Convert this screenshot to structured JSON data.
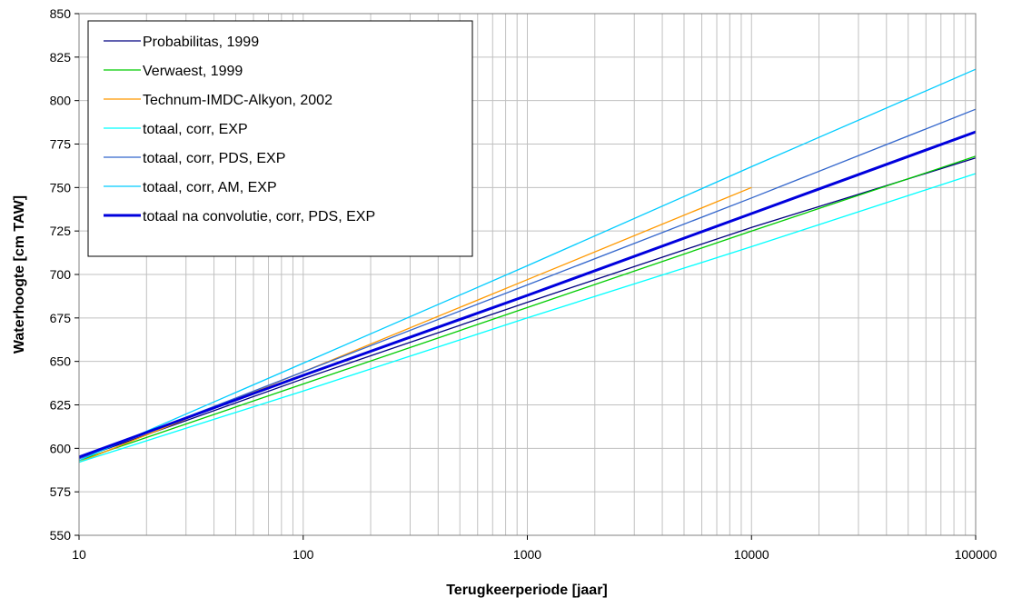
{
  "chart_data": {
    "type": "line",
    "title": "",
    "xlabel": "Terugkeerperiode [jaar]",
    "ylabel": "Waterhoogte [cm TAW]",
    "x_scale": "log",
    "xlim": [
      10,
      100000
    ],
    "ylim": [
      550,
      850
    ],
    "x_ticks": [
      10,
      100,
      1000,
      10000,
      100000
    ],
    "x_tick_labels": [
      "10",
      "100",
      "1000",
      "10000",
      "100000"
    ],
    "y_ticks": [
      550,
      575,
      600,
      625,
      650,
      675,
      700,
      725,
      750,
      775,
      800,
      825,
      850
    ],
    "y_tick_labels": [
      "550",
      "575",
      "600",
      "625",
      "650",
      "675",
      "700",
      "725",
      "750",
      "775",
      "800",
      "825",
      "850"
    ],
    "grid": true,
    "legend_position": "top-left",
    "series": [
      {
        "name": "Probabilitas, 1999",
        "color": "#000080",
        "width": 1.3,
        "x": [
          10,
          100,
          1000,
          10000,
          100000
        ],
        "y": [
          594,
          640,
          684,
          727,
          767
        ]
      },
      {
        "name": "Verwaest, 1999",
        "color": "#00cc00",
        "width": 1.3,
        "x": [
          10,
          100,
          1000,
          10000,
          100000
        ],
        "y": [
          593,
          637,
          681,
          725,
          768
        ]
      },
      {
        "name": "Technum-IMDC-Alkyon, 2002",
        "color": "#ff9900",
        "width": 1.3,
        "x": [
          10,
          100,
          1000,
          10000
        ],
        "y": [
          592,
          644,
          697,
          750
        ]
      },
      {
        "name": "totaal, corr, EXP",
        "color": "#00ffff",
        "width": 1.3,
        "x": [
          10,
          100,
          1000,
          10000,
          100000
        ],
        "y": [
          592,
          633,
          675,
          716,
          758
        ]
      },
      {
        "name": "totaal, corr, PDS, EXP",
        "color": "#3366cc",
        "width": 1.3,
        "x": [
          10,
          100,
          1000,
          10000,
          100000
        ],
        "y": [
          594,
          644,
          694,
          744,
          795
        ]
      },
      {
        "name": "totaal, corr, AM, EXP",
        "color": "#00ccff",
        "width": 1.3,
        "x": [
          10,
          100,
          1000,
          10000,
          100000
        ],
        "y": [
          593,
          649,
          705,
          762,
          818
        ]
      },
      {
        "name": "totaal na convolutie, corr, PDS, EXP",
        "color": "#0000dd",
        "width": 3,
        "x": [
          10,
          100,
          1000,
          10000,
          100000
        ],
        "y": [
          595,
          642,
          688,
          735,
          782
        ]
      }
    ]
  }
}
